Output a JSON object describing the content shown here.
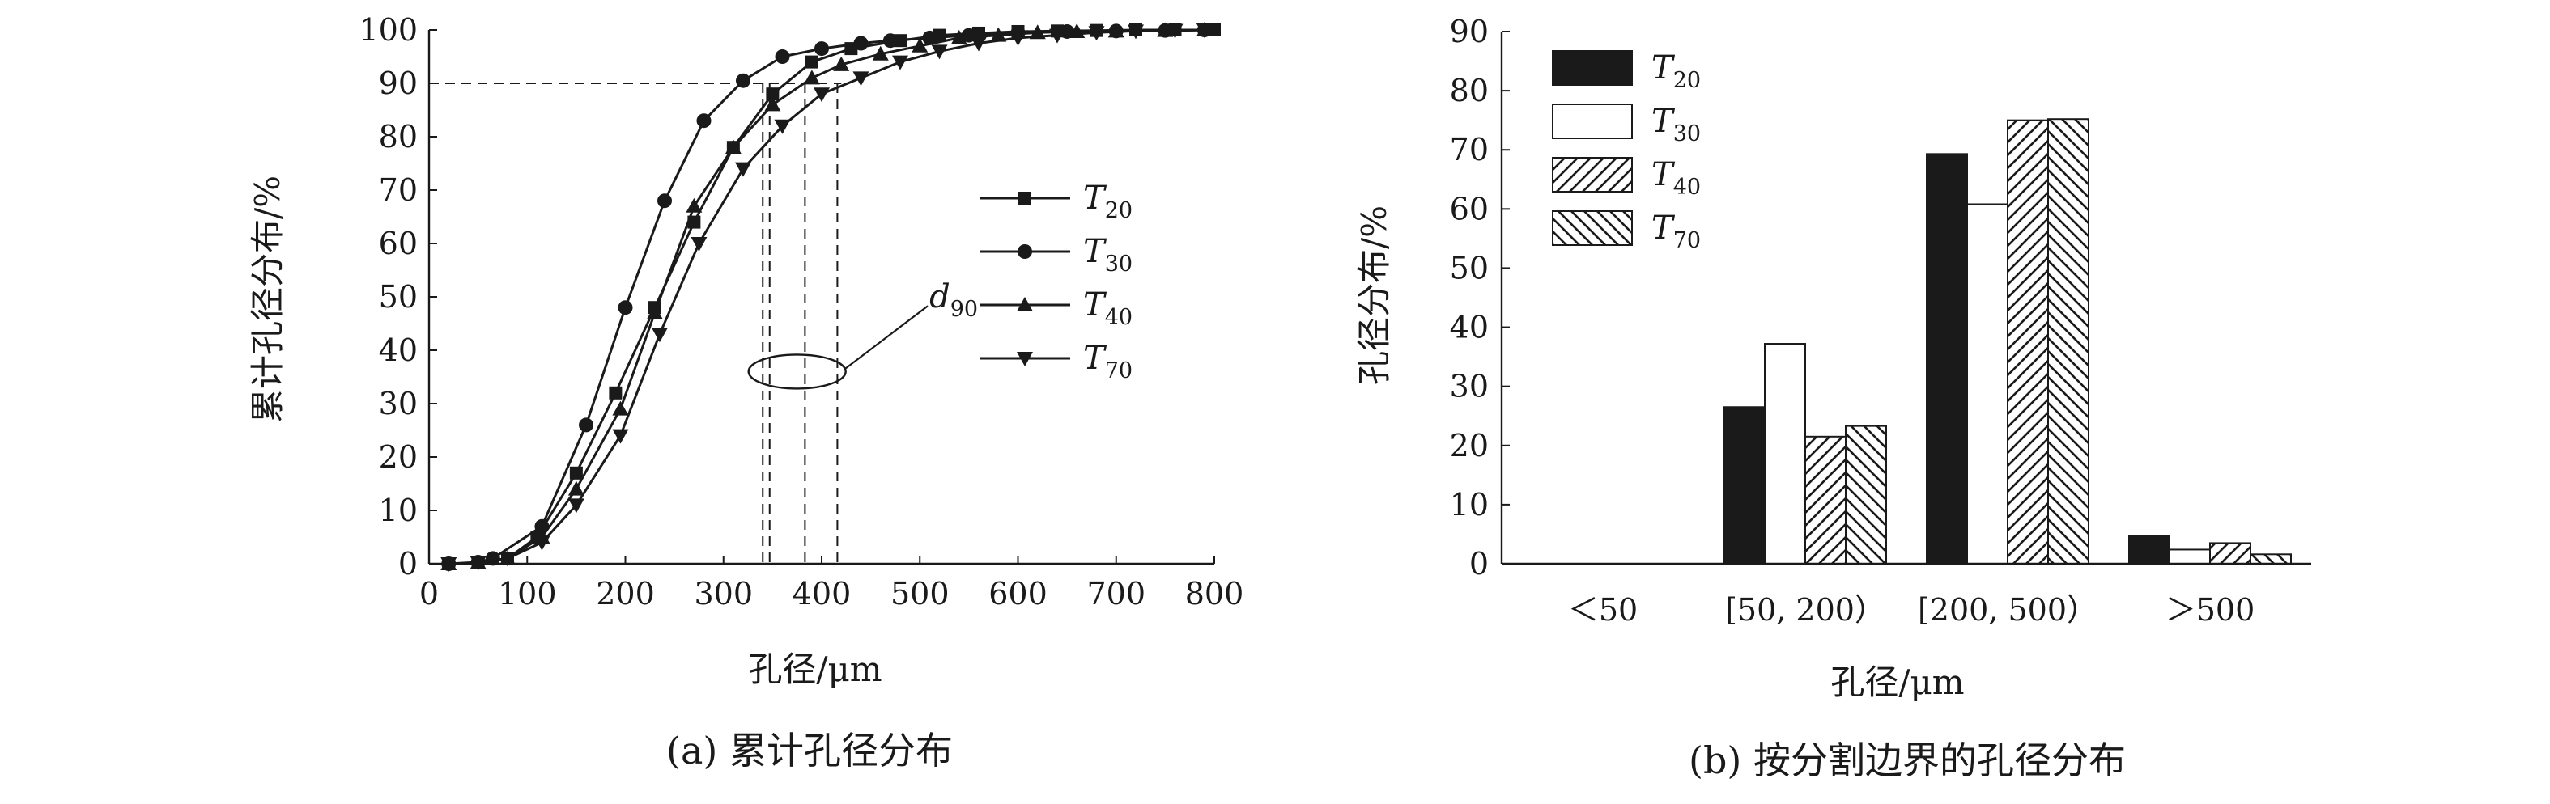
{
  "chart_data": [
    {
      "type": "line",
      "caption": "(a) 累计孔径分布",
      "xlabel": "孔径/μm",
      "ylabel": "累计孔径分布/%",
      "xlim": [
        0,
        800
      ],
      "ylim": [
        0,
        100
      ],
      "xticks": [
        0,
        100,
        200,
        300,
        400,
        500,
        600,
        700,
        800
      ],
      "yticks": [
        0,
        10,
        20,
        30,
        40,
        50,
        60,
        70,
        80,
        90,
        100
      ],
      "grid": false,
      "legend_position": "right",
      "series": [
        {
          "name": "T",
          "subscript": "20",
          "marker": "square",
          "x": [
            20,
            50,
            80,
            110,
            150,
            190,
            230,
            270,
            310,
            350,
            390,
            430,
            480,
            520,
            560,
            600,
            640,
            680,
            720,
            760,
            800
          ],
          "y": [
            0,
            0.2,
            1,
            5,
            17,
            32,
            48,
            64,
            78,
            88,
            94,
            96.5,
            98,
            99,
            99.4,
            99.7,
            99.8,
            99.9,
            100,
            100,
            100
          ]
        },
        {
          "name": "T",
          "subscript": "30",
          "marker": "circle",
          "x": [
            20,
            50,
            65,
            115,
            160,
            200,
            240,
            280,
            320,
            360,
            400,
            440,
            470,
            510,
            550,
            600,
            650,
            700,
            750,
            790
          ],
          "y": [
            0,
            0.3,
            1,
            7,
            26,
            48,
            68,
            83,
            90.5,
            95,
            96.5,
            97.5,
            98,
            98.5,
            99,
            99.5,
            99.7,
            99.8,
            99.9,
            100
          ]
        },
        {
          "name": "T",
          "subscript": "40",
          "marker": "triangle-up",
          "x": [
            20,
            50,
            80,
            115,
            150,
            195,
            230,
            270,
            310,
            350,
            390,
            420,
            460,
            500,
            540,
            580,
            620,
            660,
            700,
            750,
            790
          ],
          "y": [
            0,
            0.2,
            1,
            5,
            14,
            29,
            47,
            67,
            78,
            86,
            91,
            93.5,
            95.5,
            97,
            98.5,
            99,
            99.5,
            99.7,
            99.8,
            99.9,
            100
          ]
        },
        {
          "name": "T",
          "subscript": "70",
          "marker": "triangle-down",
          "x": [
            20,
            50,
            80,
            115,
            150,
            195,
            235,
            275,
            320,
            360,
            400,
            440,
            480,
            520,
            560,
            600,
            640,
            680,
            720,
            760,
            790
          ],
          "y": [
            0,
            0.2,
            1,
            4,
            11,
            24,
            43,
            60,
            74,
            82,
            88,
            91,
            94,
            96,
            97.5,
            98.5,
            99,
            99.5,
            99.8,
            99.9,
            100
          ]
        }
      ],
      "reference_lines": {
        "horizontal_y": 90,
        "horizontal_x_end": 420,
        "d90_x": [
          340,
          347,
          383,
          416
        ]
      },
      "annotation": {
        "text": "d",
        "subscript": "90",
        "ellipse_center": [
          375,
          36
        ],
        "label_at": [
          490,
          48
        ]
      }
    },
    {
      "type": "bar",
      "caption": "(b) 按分割边界的孔径分布",
      "xlabel": "孔径/μm",
      "ylabel": "孔径分布/%",
      "ylim": [
        0,
        90
      ],
      "yticks": [
        0,
        10,
        20,
        30,
        40,
        50,
        60,
        70,
        80,
        90
      ],
      "grid": false,
      "legend_position": "top-left",
      "categories": [
        "＜50",
        "[50, 200）",
        "[200, 500）",
        "＞500"
      ],
      "series": [
        {
          "name": "T",
          "subscript": "20",
          "fill": "solid",
          "values": [
            0,
            26.5,
            69.3,
            4.7
          ]
        },
        {
          "name": "T",
          "subscript": "30",
          "fill": "white",
          "values": [
            0,
            37.2,
            60.8,
            2.4
          ]
        },
        {
          "name": "T",
          "subscript": "40",
          "fill": "hatch-forward",
          "values": [
            0,
            21.5,
            75.0,
            3.5
          ]
        },
        {
          "name": "T",
          "subscript": "70",
          "fill": "hatch-back",
          "values": [
            0,
            23.3,
            75.2,
            1.6
          ]
        }
      ]
    }
  ]
}
